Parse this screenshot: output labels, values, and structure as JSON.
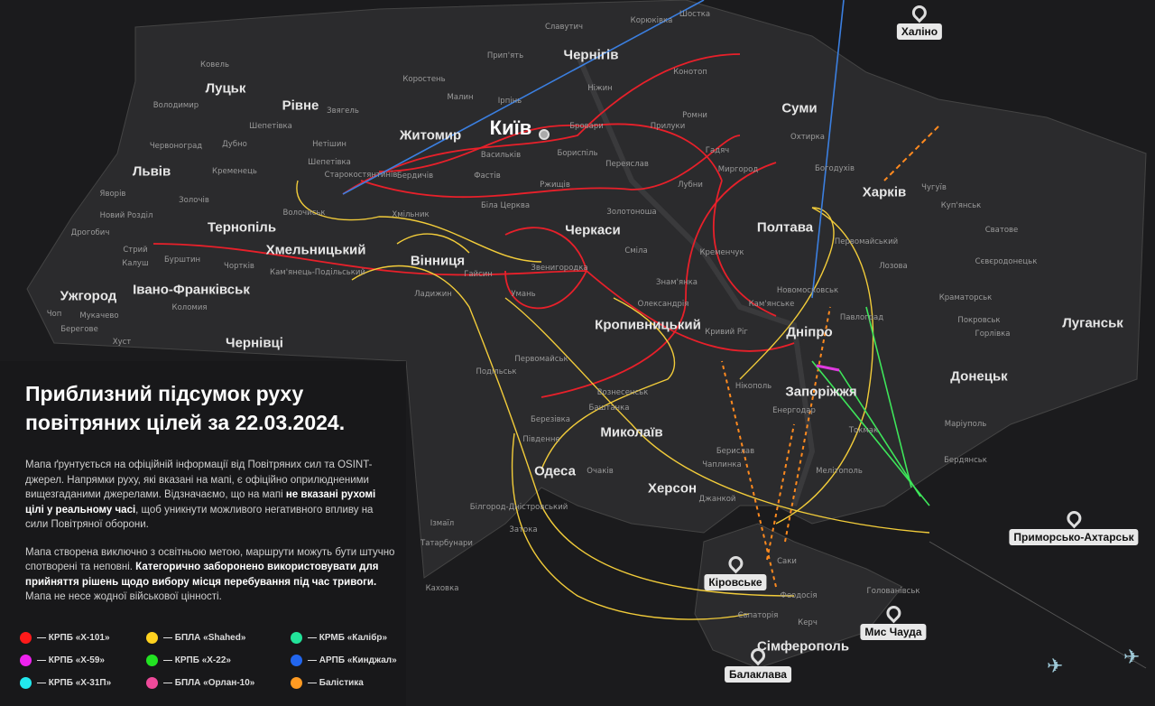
{
  "title_line1": "Приблизний підсумок руху",
  "title_line2": "повітряних цілей за 22.03.2024.",
  "desc": {
    "p1_a": "Мапа ґрунтується на офіційній інформації від Повітряних сил та OSINT-джерел. Напрямки руху, які вказані на мапі, є офіційно оприлюдненими вищезгаданими джерелами. Відзначаємо, що на мапі ",
    "p1_b": "не вказані рухомі цілі у реальному часі",
    "p1_c": ", щоб уникнути можливого негативного впливу на сили Повітряної оборони.",
    "p2_a": "Мапа створена виключно з освітньою метою, маршрути можуть бути штучно спотворені та неповні. ",
    "p2_b": "Категорично заборонено використовувати для прийняття рішень щодо вибору місця перебування під час тривоги.",
    "p2_c": " Мапа не несе жодної військової цінності."
  },
  "legend": [
    {
      "label": "— КРПБ «Х-101»",
      "color": "#ff1a1a"
    },
    {
      "label": "— БПЛА «Shahed»",
      "color": "#ffd21f"
    },
    {
      "label": "— КРМБ «Калібр»",
      "color": "#22e39a"
    },
    {
      "label": "— КРПБ «Х-59»",
      "color": "#ee22ee"
    },
    {
      "label": "— КРПБ «Х-22»",
      "color": "#22e322"
    },
    {
      "label": "— АРПБ «Кинджал»",
      "color": "#2266ee"
    },
    {
      "label": "— КРПБ «Х-31П»",
      "color": "#22e8ee"
    },
    {
      "label": "— БПЛА «Орлан-10»",
      "color": "#ee4a9a"
    },
    {
      "label": "— Балістика",
      "color": "#ff9a22"
    }
  ],
  "capital": "Київ",
  "cities": [
    "Луцьк",
    "Рівне",
    "Житомир",
    "Чернігів",
    "Суми",
    "Львів",
    "Тернопіль",
    "Хмельницький",
    "Вінниця",
    "Черкаси",
    "Полтава",
    "Харків",
    "Ужгород",
    "Івано-Франківськ",
    "Чернівці",
    "Кропивницький",
    "Дніпро",
    "Запоріжжя",
    "Луганськ",
    "Донецьк",
    "Миколаїв",
    "Одеса",
    "Херсон",
    "Сімферополь"
  ],
  "towns": [
    "Ковель",
    "Володимир",
    "Червоноград",
    "Яворів",
    "Новий Розділ",
    "Дрогобич",
    "Стрий",
    "Калуш",
    "Бурштин",
    "Дубно",
    "Кременець",
    "Золочів",
    "Шепетівка",
    "Нетішин",
    "Звягель",
    "Старокостянтинів",
    "Бердичів",
    "Хмільник",
    "Волочиськ",
    "Кам'янець-Подільський",
    "Чортків",
    "Коломия",
    "Мукачево",
    "Берегове",
    "Хуст",
    "Чоп",
    "Славутич",
    "Прип'ять",
    "Коростень",
    "Малин",
    "Ірпінь",
    "Бровари",
    "Бориспіль",
    "Фастів",
    "Біла Церква",
    "Васильків",
    "Ржищів",
    "Переяслав",
    "Прилуки",
    "Ніжин",
    "Конотоп",
    "Шостка",
    "Корюківка",
    "Ромни",
    "Охтирка",
    "Гадяч",
    "Лубни",
    "Миргород",
    "Богодухів",
    "Чугуїв",
    "Куп'янськ",
    "Сватове",
    "Лозова",
    "Первомайський",
    "Кременчук",
    "Звенигородка",
    "Умань",
    "Гайсин",
    "Ладижин",
    "Сміла",
    "Золотоноша",
    "Знам'янка",
    "Олександрія",
    "Новомосковськ",
    "Павлоград",
    "Кам'янське",
    "Кривий Ріг",
    "Нікополь",
    "Енергодар",
    "Токмак",
    "Мелітополь",
    "Бердянськ",
    "Маріуполь",
    "Краматорськ",
    "Покровськ",
    "Горлівка",
    "Сєвєродонецьк",
    "Первомайськ",
    "Вознесенськ",
    "Баштанка",
    "Подільськ",
    "Березівка",
    "Південне",
    "Очаків",
    "Затока",
    "Білгород-Дністровський",
    "Ізмаїл",
    "Татарбунари",
    "Каховка",
    "Берислав",
    "Чаплинка",
    "Джанкой",
    "Саки",
    "Євпаторія",
    "Феодосія",
    "Керч",
    "Голованівськ",
    "Шепетівка"
  ],
  "pins": [
    "Халіно",
    "Приморсько-Ахтарськ",
    "Кіровське",
    "Мис Чауда",
    "Сімферополь",
    "Балаклава"
  ],
  "route_colors": {
    "kh101": "#e8202a",
    "shahed": "#f2cc3a",
    "kinzhal": "#3b7fe0",
    "ballistic": "#ff8a1f",
    "kh22": "#3ee65a",
    "kh59": "#e03ae0"
  }
}
